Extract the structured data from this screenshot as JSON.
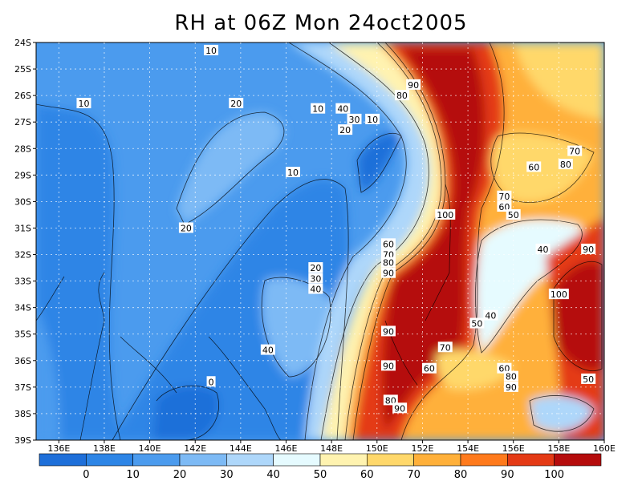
{
  "title": "RH at 06Z Mon 24oct2005",
  "map": {
    "lon_range": [
      135,
      160
    ],
    "lat_range": [
      -39,
      -24
    ],
    "lon_ticks": [
      {
        "lon": 136,
        "label": "136E"
      },
      {
        "lon": 138,
        "label": "138E"
      },
      {
        "lon": 140,
        "label": "140E"
      },
      {
        "lon": 142,
        "label": "142E"
      },
      {
        "lon": 144,
        "label": "144E"
      },
      {
        "lon": 146,
        "label": "146E"
      },
      {
        "lon": 148,
        "label": "148E"
      },
      {
        "lon": 150,
        "label": "150E"
      },
      {
        "lon": 152,
        "label": "152E"
      },
      {
        "lon": 154,
        "label": "154E"
      },
      {
        "lon": 156,
        "label": "156E"
      },
      {
        "lon": 158,
        "label": "158E"
      },
      {
        "lon": 160,
        "label": "160E"
      }
    ],
    "lat_ticks": [
      {
        "lat": -24,
        "label": "24S"
      },
      {
        "lat": -25,
        "label": "25S"
      },
      {
        "lat": -26,
        "label": "26S"
      },
      {
        "lat": -27,
        "label": "27S"
      },
      {
        "lat": -28,
        "label": "28S"
      },
      {
        "lat": -29,
        "label": "29S"
      },
      {
        "lat": -30,
        "label": "30S"
      },
      {
        "lat": -31,
        "label": "31S"
      },
      {
        "lat": -32,
        "label": "32S"
      },
      {
        "lat": -33,
        "label": "33S"
      },
      {
        "lat": -34,
        "label": "34S"
      },
      {
        "lat": -35,
        "label": "35S"
      },
      {
        "lat": -36,
        "label": "36S"
      },
      {
        "lat": -37,
        "label": "37S"
      },
      {
        "lat": -38,
        "label": "38S"
      },
      {
        "lat": -39,
        "label": "39S"
      }
    ],
    "contour_labels": [
      {
        "text": "10",
        "lon": 142.7,
        "lat": -24.3
      },
      {
        "text": "10",
        "lon": 137.1,
        "lat": -26.3
      },
      {
        "text": "20",
        "lon": 143.8,
        "lat": -26.3
      },
      {
        "text": "10",
        "lon": 147.4,
        "lat": -26.5
      },
      {
        "text": "40",
        "lon": 148.5,
        "lat": -26.5
      },
      {
        "text": "30",
        "lon": 149.0,
        "lat": -26.9
      },
      {
        "text": "10",
        "lon": 149.8,
        "lat": -26.9
      },
      {
        "text": "20",
        "lon": 148.6,
        "lat": -27.3
      },
      {
        "text": "90",
        "lon": 151.6,
        "lat": -25.6
      },
      {
        "text": "80",
        "lon": 151.1,
        "lat": -26.0
      },
      {
        "text": "70",
        "lon": 158.7,
        "lat": -28.1
      },
      {
        "text": "80",
        "lon": 158.3,
        "lat": -28.6
      },
      {
        "text": "60",
        "lon": 156.9,
        "lat": -28.7
      },
      {
        "text": "10",
        "lon": 146.3,
        "lat": -28.9
      },
      {
        "text": "70",
        "lon": 155.6,
        "lat": -29.8
      },
      {
        "text": "60",
        "lon": 155.6,
        "lat": -30.2
      },
      {
        "text": "50",
        "lon": 156.0,
        "lat": -30.5
      },
      {
        "text": "100",
        "lon": 153.0,
        "lat": -30.5
      },
      {
        "text": "20",
        "lon": 141.6,
        "lat": -31.0
      },
      {
        "text": "60",
        "lon": 150.5,
        "lat": -31.6
      },
      {
        "text": "70",
        "lon": 150.5,
        "lat": -32.0
      },
      {
        "text": "80",
        "lon": 150.5,
        "lat": -32.3
      },
      {
        "text": "90",
        "lon": 150.5,
        "lat": -32.7
      },
      {
        "text": "40",
        "lon": 157.3,
        "lat": -31.8
      },
      {
        "text": "90",
        "lon": 159.3,
        "lat": -31.8
      },
      {
        "text": "20",
        "lon": 147.3,
        "lat": -32.5
      },
      {
        "text": "30",
        "lon": 147.3,
        "lat": -32.9
      },
      {
        "text": "40",
        "lon": 147.3,
        "lat": -33.3
      },
      {
        "text": "100",
        "lon": 158.0,
        "lat": -33.5
      },
      {
        "text": "40",
        "lon": 155.0,
        "lat": -34.3
      },
      {
        "text": "50",
        "lon": 154.4,
        "lat": -34.6
      },
      {
        "text": "40",
        "lon": 145.2,
        "lat": -35.6
      },
      {
        "text": "90",
        "lon": 150.5,
        "lat": -34.9
      },
      {
        "text": "70",
        "lon": 153.0,
        "lat": -35.5
      },
      {
        "text": "60",
        "lon": 152.3,
        "lat": -36.3
      },
      {
        "text": "90",
        "lon": 150.5,
        "lat": -36.2
      },
      {
        "text": "60",
        "lon": 155.6,
        "lat": -36.3
      },
      {
        "text": "80",
        "lon": 155.9,
        "lat": -36.6
      },
      {
        "text": "90",
        "lon": 155.9,
        "lat": -37.0
      },
      {
        "text": "0",
        "lon": 142.7,
        "lat": -36.8
      },
      {
        "text": "50",
        "lon": 159.3,
        "lat": -36.7
      },
      {
        "text": "80",
        "lon": 150.6,
        "lat": -37.5
      },
      {
        "text": "90",
        "lon": 151.0,
        "lat": -37.8
      }
    ]
  },
  "colorbar": {
    "colors": [
      "#1e6fd9",
      "#2d85e6",
      "#4b9bee",
      "#7dbaf5",
      "#aed7fa",
      "#e6fbff",
      "#fff3b0",
      "#ffd86b",
      "#ffb03a",
      "#ff7a1c",
      "#e43a15",
      "#b50c0c"
    ],
    "labels": [
      "0",
      "10",
      "20",
      "30",
      "40",
      "50",
      "60",
      "70",
      "80",
      "90",
      "100"
    ]
  }
}
